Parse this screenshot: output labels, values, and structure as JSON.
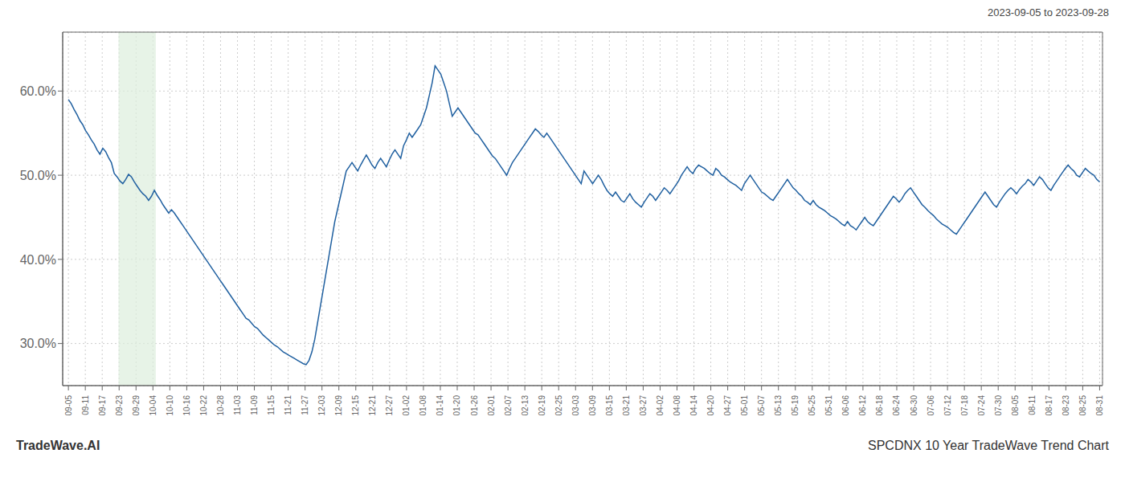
{
  "chart_data": {
    "type": "line",
    "title": "SPCDNX 10 Year TradeWave Trend Chart",
    "subtitle": "2023-09-05 to 2023-09-28",
    "annotations": [
      "TradeWave.AI"
    ],
    "color": "#2060a0",
    "grid": true,
    "highlight": {
      "x": [
        17.5,
        30.5
      ],
      "color": "#ddeedd"
    },
    "xlim": [
      -2,
      361
    ],
    "xticks": [
      {
        "value": 0,
        "label": "09-05"
      },
      {
        "value": 5.901639,
        "label": "09-11"
      },
      {
        "value": 11.803279,
        "label": "09-17"
      },
      {
        "value": 17.704918,
        "label": "09-23"
      },
      {
        "value": 23.606557,
        "label": "09-29"
      },
      {
        "value": 29.508197,
        "label": "10-04"
      },
      {
        "value": 35.409836,
        "label": "10-10"
      },
      {
        "value": 41.311475,
        "label": "10-16"
      },
      {
        "value": 47.213115,
        "label": "10-22"
      },
      {
        "value": 53.114754,
        "label": "10-28"
      },
      {
        "value": 59.016393,
        "label": "11-03"
      },
      {
        "value": 64.918033,
        "label": "11-09"
      },
      {
        "value": 70.819672,
        "label": "11-15"
      },
      {
        "value": 76.721311,
        "label": "11-21"
      },
      {
        "value": 82.622951,
        "label": "11-27"
      },
      {
        "value": 88.52459,
        "label": "12-03"
      },
      {
        "value": 94.42623,
        "label": "12-09"
      },
      {
        "value": 100.327869,
        "label": "12-15"
      },
      {
        "value": 106.229508,
        "label": "12-21"
      },
      {
        "value": 112.131148,
        "label": "12-27"
      },
      {
        "value": 118.032787,
        "label": "01-02"
      },
      {
        "value": 123.934426,
        "label": "01-08"
      },
      {
        "value": 129.836066,
        "label": "01-14"
      },
      {
        "value": 135.737705,
        "label": "01-20"
      },
      {
        "value": 141.639344,
        "label": "01-26"
      },
      {
        "value": 147.540984,
        "label": "02-01"
      },
      {
        "value": 153.442623,
        "label": "02-07"
      },
      {
        "value": 159.344262,
        "label": "02-13"
      },
      {
        "value": 165.245902,
        "label": "02-19"
      },
      {
        "value": 171.147541,
        "label": "02-25"
      },
      {
        "value": 177.04918,
        "label": "03-03"
      },
      {
        "value": 182.95082,
        "label": "03-09"
      },
      {
        "value": 188.852459,
        "label": "03-15"
      },
      {
        "value": 194.754098,
        "label": "03-21"
      },
      {
        "value": 200.655738,
        "label": "03-27"
      },
      {
        "value": 206.557377,
        "label": "04-02"
      },
      {
        "value": 212.459016,
        "label": "04-08"
      },
      {
        "value": 218.360656,
        "label": "04-14"
      },
      {
        "value": 224.262295,
        "label": "04-20"
      },
      {
        "value": 230.163934,
        "label": "04-27"
      },
      {
        "value": 236.065574,
        "label": "05-01"
      },
      {
        "value": 241.967213,
        "label": "05-07"
      },
      {
        "value": 247.868852,
        "label": "05-13"
      },
      {
        "value": 253.770492,
        "label": "05-19"
      },
      {
        "value": 259.672131,
        "label": "05-25"
      },
      {
        "value": 265.57377,
        "label": "05-31"
      },
      {
        "value": 271.47541,
        "label": "06-06"
      },
      {
        "value": 277.377049,
        "label": "06-12"
      },
      {
        "value": 283.278689,
        "label": "06-18"
      },
      {
        "value": 289.180328,
        "label": "06-24"
      },
      {
        "value": 295.081967,
        "label": "06-30"
      },
      {
        "value": 300.983607,
        "label": "07-06"
      },
      {
        "value": 306.885246,
        "label": "07-12"
      },
      {
        "value": 312.786885,
        "label": "07-18"
      },
      {
        "value": 318.688525,
        "label": "07-24"
      },
      {
        "value": 324.590164,
        "label": "07-30"
      },
      {
        "value": 330.491803,
        "label": "08-05"
      },
      {
        "value": 336.393443,
        "label": "08-11"
      },
      {
        "value": 342.295082,
        "label": "08-17"
      },
      {
        "value": 348.196721,
        "label": "08-23"
      },
      {
        "value": 354.098361,
        "label": "08-25"
      },
      {
        "value": 360,
        "label": "08-31"
      }
    ],
    "ylim": [
      25.0,
      67.0
    ],
    "yticks": [
      {
        "value": 30.0,
        "label": "30.0%"
      },
      {
        "value": 40.0,
        "label": "40.0%"
      },
      {
        "value": 50.0,
        "label": "50.0%"
      },
      {
        "value": 60.0,
        "label": "60.0%"
      }
    ],
    "x": [
      0,
      1,
      2,
      3,
      4,
      5,
      6,
      7,
      8,
      9,
      10,
      11,
      12,
      13,
      14,
      15,
      16,
      17,
      18,
      19,
      20,
      21,
      22,
      23,
      24,
      25,
      26,
      27,
      28,
      29,
      30,
      31,
      32,
      33,
      34,
      35,
      36,
      37,
      38,
      39,
      40,
      41,
      42,
      43,
      44,
      45,
      46,
      47,
      48,
      49,
      50,
      51,
      52,
      53,
      54,
      55,
      56,
      57,
      58,
      59,
      60,
      61,
      62,
      63,
      64,
      65,
      66,
      67,
      68,
      69,
      70,
      71,
      72,
      73,
      74,
      75,
      76,
      77,
      78,
      79,
      80,
      81,
      82,
      83,
      84,
      85,
      86,
      87,
      88,
      89,
      90,
      91,
      92,
      93,
      94,
      95,
      96,
      97,
      98,
      99,
      100,
      101,
      102,
      103,
      104,
      105,
      106,
      107,
      108,
      109,
      110,
      111,
      112,
      113,
      114,
      115,
      116,
      117,
      118,
      119,
      120,
      121,
      122,
      123,
      124,
      125,
      126,
      127,
      128,
      129,
      130,
      131,
      132,
      133,
      134,
      135,
      136,
      137,
      138,
      139,
      140,
      141,
      142,
      143,
      144,
      145,
      146,
      147,
      148,
      149,
      150,
      151,
      152,
      153,
      154,
      155,
      156,
      157,
      158,
      159,
      160,
      161,
      162,
      163,
      164,
      165,
      166,
      167,
      168,
      169,
      170,
      171,
      172,
      173,
      174,
      175,
      176,
      177,
      178,
      179,
      180,
      181,
      182,
      183,
      184,
      185,
      186,
      187,
      188,
      189,
      190,
      191,
      192,
      193,
      194,
      195,
      196,
      197,
      198,
      199,
      200,
      201,
      202,
      203,
      204,
      205,
      206,
      207,
      208,
      209,
      210,
      211,
      212,
      213,
      214,
      215,
      216,
      217,
      218,
      219,
      220,
      221,
      222,
      223,
      224,
      225,
      226,
      227,
      228,
      229,
      230,
      231,
      232,
      233,
      234,
      235,
      236,
      237,
      238,
      239,
      240,
      241,
      242,
      243,
      244,
      245,
      246,
      247,
      248,
      249,
      250,
      251,
      252,
      253,
      254,
      255,
      256,
      257,
      258,
      259,
      260,
      261,
      262,
      263,
      264,
      265,
      266,
      267,
      268,
      269,
      270,
      271,
      272,
      273,
      274,
      275,
      276,
      277,
      278,
      279,
      280,
      281,
      282,
      283,
      284,
      285,
      286,
      287,
      288,
      289,
      290,
      291,
      292,
      293,
      294,
      295,
      296,
      297,
      298,
      299,
      300,
      301,
      302,
      303,
      304,
      305,
      306,
      307,
      308,
      309,
      310,
      311,
      312,
      313,
      314,
      315,
      316,
      317,
      318,
      319,
      320,
      321,
      322,
      323,
      324,
      325,
      326,
      327,
      328,
      329,
      330,
      331,
      332,
      333,
      334,
      335,
      336,
      337,
      338,
      339,
      340,
      341,
      342,
      343,
      344,
      345,
      346,
      347,
      348,
      349,
      350,
      351,
      352,
      353,
      354,
      355,
      356,
      357,
      358,
      359,
      360
    ],
    "values": [
      59.0,
      58.5,
      57.8,
      57.2,
      56.5,
      56.0,
      55.3,
      54.8,
      54.2,
      53.7,
      53.0,
      52.5,
      53.2,
      52.8,
      52.1,
      51.5,
      50.2,
      49.8,
      49.3,
      49.0,
      49.5,
      50.1,
      49.8,
      49.2,
      48.7,
      48.2,
      47.8,
      47.5,
      47.0,
      47.5,
      48.2,
      47.6,
      47.1,
      46.5,
      46.0,
      45.5,
      45.9,
      45.5,
      45.0,
      44.5,
      44.0,
      43.5,
      43.0,
      42.5,
      42.0,
      41.5,
      41.0,
      40.5,
      40.0,
      39.5,
      39.0,
      38.5,
      38.0,
      37.5,
      37.0,
      36.5,
      36.0,
      35.5,
      35.0,
      34.5,
      34.0,
      33.5,
      33.0,
      32.8,
      32.4,
      32.0,
      31.8,
      31.4,
      31.0,
      30.7,
      30.4,
      30.1,
      29.8,
      29.6,
      29.3,
      29.0,
      28.8,
      28.6,
      28.4,
      28.2,
      28.0,
      27.8,
      27.6,
      27.5,
      28.0,
      29.0,
      30.5,
      32.5,
      34.5,
      36.5,
      38.5,
      40.5,
      42.5,
      44.5,
      46.0,
      47.5,
      49.0,
      50.5,
      51.0,
      51.5,
      51.0,
      50.5,
      51.2,
      51.8,
      52.4,
      51.8,
      51.2,
      50.8,
      51.5,
      52.0,
      51.5,
      51.0,
      51.8,
      52.5,
      53.0,
      52.5,
      52.0,
      53.5,
      54.2,
      55.0,
      54.5,
      55.0,
      55.5,
      56.0,
      57.0,
      58.0,
      59.5,
      61.0,
      63.0,
      62.5,
      62.0,
      61.0,
      60.0,
      58.5,
      57.0,
      57.5,
      58.0,
      57.5,
      57.0,
      56.5,
      56.0,
      55.5,
      55.0,
      54.8,
      54.3,
      53.8,
      53.3,
      52.8,
      52.3,
      52.0,
      51.5,
      51.0,
      50.5,
      50.0,
      50.8,
      51.5,
      52.0,
      52.5,
      53.0,
      53.5,
      54.0,
      54.5,
      55.0,
      55.5,
      55.2,
      54.8,
      54.5,
      55.0,
      54.5,
      54.0,
      53.5,
      53.0,
      52.5,
      52.0,
      51.5,
      51.0,
      50.5,
      50.0,
      49.5,
      49.0,
      50.5,
      50.0,
      49.5,
      49.0,
      49.5,
      50.0,
      49.5,
      48.8,
      48.2,
      47.8,
      47.5,
      48.0,
      47.5,
      47.0,
      46.8,
      47.3,
      47.8,
      47.2,
      46.8,
      46.5,
      46.2,
      46.8,
      47.3,
      47.8,
      47.5,
      47.0,
      47.5,
      48.0,
      48.5,
      48.2,
      47.8,
      48.3,
      48.8,
      49.3,
      50.0,
      50.5,
      51.0,
      50.5,
      50.2,
      50.8,
      51.2,
      51.0,
      50.8,
      50.5,
      50.2,
      50.0,
      50.8,
      50.5,
      50.0,
      49.8,
      49.5,
      49.2,
      49.0,
      48.8,
      48.5,
      48.2,
      49.0,
      49.5,
      50.0,
      49.5,
      49.0,
      48.5,
      48.0,
      47.8,
      47.5,
      47.2,
      47.0,
      47.5,
      48.0,
      48.5,
      49.0,
      49.5,
      49.0,
      48.5,
      48.2,
      47.8,
      47.5,
      47.0,
      46.8,
      46.5,
      47.0,
      46.5,
      46.2,
      46.0,
      45.8,
      45.5,
      45.2,
      45.0,
      44.8,
      44.5,
      44.2,
      44.0,
      44.5,
      44.0,
      43.8,
      43.5,
      44.0,
      44.5,
      45.0,
      44.5,
      44.2,
      44.0,
      44.5,
      45.0,
      45.5,
      46.0,
      46.5,
      47.0,
      47.5,
      47.2,
      46.8,
      47.2,
      47.8,
      48.2,
      48.5,
      48.0,
      47.5,
      47.0,
      46.5,
      46.2,
      45.8,
      45.5,
      45.2,
      44.8,
      44.5,
      44.2,
      44.0,
      43.8,
      43.5,
      43.2,
      43.0,
      43.5,
      44.0,
      44.5,
      45.0,
      45.5,
      46.0,
      46.5,
      47.0,
      47.5,
      48.0,
      47.5,
      47.0,
      46.5,
      46.2,
      46.8,
      47.3,
      47.8,
      48.2,
      48.5,
      48.2,
      47.8,
      48.3,
      48.7,
      49.0,
      49.5,
      49.2,
      48.8,
      49.3,
      49.8,
      49.5,
      49.0,
      48.5,
      48.2,
      48.8,
      49.3,
      49.8,
      50.3,
      50.8,
      51.2,
      50.8,
      50.5,
      50.0,
      49.8,
      50.3,
      50.8,
      50.5,
      50.2,
      50.0,
      49.5,
      49.2
    ]
  }
}
